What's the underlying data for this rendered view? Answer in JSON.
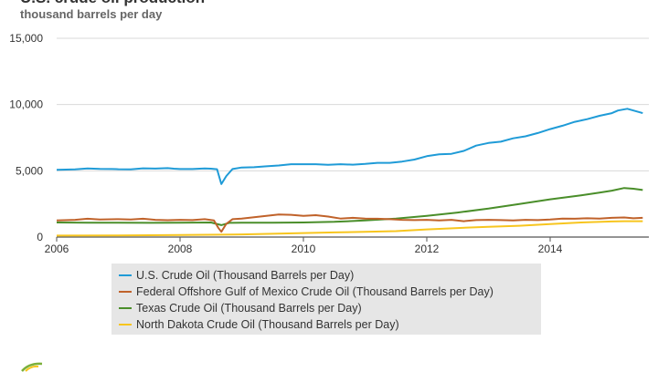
{
  "chart_data": {
    "type": "line",
    "title": "U.S. crude oil production",
    "subtitle": "thousand barrels per day",
    "xlim": [
      2006,
      2015.6
    ],
    "ylim": [
      0,
      15000
    ],
    "x_ticks": [
      2006,
      2008,
      2010,
      2012,
      2014
    ],
    "x_tick_labels": [
      "2006",
      "2008",
      "2010",
      "2012",
      "2014"
    ],
    "y_ticks": [
      0,
      5000,
      10000,
      15000
    ],
    "y_tick_labels": [
      "0",
      "5,000",
      "10,000",
      "15,000"
    ],
    "grid": true,
    "legend_position": "bottom",
    "series": [
      {
        "name": "U.S. Crude Oil (Thousand Barrels per Day)",
        "color": "#1f9bd7",
        "points": [
          [
            2006.0,
            5080
          ],
          [
            2006.3,
            5110
          ],
          [
            2006.5,
            5180
          ],
          [
            2006.7,
            5150
          ],
          [
            2006.9,
            5130
          ],
          [
            2007.0,
            5120
          ],
          [
            2007.2,
            5110
          ],
          [
            2007.4,
            5190
          ],
          [
            2007.6,
            5170
          ],
          [
            2007.8,
            5200
          ],
          [
            2007.9,
            5160
          ],
          [
            2008.0,
            5130
          ],
          [
            2008.2,
            5130
          ],
          [
            2008.4,
            5180
          ],
          [
            2008.5,
            5160
          ],
          [
            2008.6,
            5120
          ],
          [
            2008.67,
            4000
          ],
          [
            2008.75,
            4600
          ],
          [
            2008.85,
            5130
          ],
          [
            2009.0,
            5250
          ],
          [
            2009.2,
            5270
          ],
          [
            2009.4,
            5340
          ],
          [
            2009.6,
            5400
          ],
          [
            2009.8,
            5500
          ],
          [
            2010.0,
            5500
          ],
          [
            2010.2,
            5500
          ],
          [
            2010.4,
            5450
          ],
          [
            2010.6,
            5500
          ],
          [
            2010.8,
            5460
          ],
          [
            2011.0,
            5520
          ],
          [
            2011.2,
            5600
          ],
          [
            2011.4,
            5600
          ],
          [
            2011.6,
            5700
          ],
          [
            2011.8,
            5850
          ],
          [
            2012.0,
            6100
          ],
          [
            2012.2,
            6250
          ],
          [
            2012.4,
            6280
          ],
          [
            2012.6,
            6500
          ],
          [
            2012.8,
            6900
          ],
          [
            2013.0,
            7100
          ],
          [
            2013.2,
            7200
          ],
          [
            2013.4,
            7450
          ],
          [
            2013.6,
            7600
          ],
          [
            2013.8,
            7850
          ],
          [
            2014.0,
            8150
          ],
          [
            2014.2,
            8400
          ],
          [
            2014.4,
            8700
          ],
          [
            2014.6,
            8900
          ],
          [
            2014.8,
            9150
          ],
          [
            2015.0,
            9350
          ],
          [
            2015.1,
            9550
          ],
          [
            2015.25,
            9680
          ],
          [
            2015.35,
            9550
          ],
          [
            2015.5,
            9350
          ]
        ]
      },
      {
        "name": "Federal Offshore Gulf of Mexico Crude Oil (Thousand Barrels per Day)",
        "color": "#c0622a",
        "points": [
          [
            2006.0,
            1250
          ],
          [
            2006.3,
            1300
          ],
          [
            2006.5,
            1380
          ],
          [
            2006.7,
            1330
          ],
          [
            2007.0,
            1350
          ],
          [
            2007.2,
            1320
          ],
          [
            2007.4,
            1380
          ],
          [
            2007.6,
            1300
          ],
          [
            2007.8,
            1270
          ],
          [
            2008.0,
            1300
          ],
          [
            2008.2,
            1280
          ],
          [
            2008.4,
            1350
          ],
          [
            2008.55,
            1250
          ],
          [
            2008.62,
            700
          ],
          [
            2008.67,
            400
          ],
          [
            2008.75,
            1000
          ],
          [
            2008.85,
            1350
          ],
          [
            2009.0,
            1400
          ],
          [
            2009.2,
            1500
          ],
          [
            2009.4,
            1600
          ],
          [
            2009.6,
            1700
          ],
          [
            2009.8,
            1680
          ],
          [
            2010.0,
            1600
          ],
          [
            2010.2,
            1650
          ],
          [
            2010.4,
            1550
          ],
          [
            2010.6,
            1400
          ],
          [
            2010.8,
            1450
          ],
          [
            2011.0,
            1400
          ],
          [
            2011.2,
            1380
          ],
          [
            2011.4,
            1350
          ],
          [
            2011.6,
            1300
          ],
          [
            2011.8,
            1280
          ],
          [
            2012.0,
            1300
          ],
          [
            2012.2,
            1250
          ],
          [
            2012.4,
            1300
          ],
          [
            2012.6,
            1200
          ],
          [
            2012.8,
            1280
          ],
          [
            2013.0,
            1300
          ],
          [
            2013.2,
            1280
          ],
          [
            2013.4,
            1250
          ],
          [
            2013.6,
            1300
          ],
          [
            2013.8,
            1280
          ],
          [
            2014.0,
            1320
          ],
          [
            2014.2,
            1400
          ],
          [
            2014.4,
            1380
          ],
          [
            2014.6,
            1420
          ],
          [
            2014.8,
            1400
          ],
          [
            2015.0,
            1450
          ],
          [
            2015.2,
            1480
          ],
          [
            2015.35,
            1420
          ],
          [
            2015.5,
            1450
          ]
        ]
      },
      {
        "name": "Texas Crude Oil (Thousand Barrels per Day)",
        "color": "#4a8e2a",
        "points": [
          [
            2006.0,
            1100
          ],
          [
            2006.5,
            1080
          ],
          [
            2007.0,
            1080
          ],
          [
            2007.5,
            1070
          ],
          [
            2008.0,
            1080
          ],
          [
            2008.5,
            1100
          ],
          [
            2008.67,
            900
          ],
          [
            2008.8,
            1070
          ],
          [
            2009.0,
            1080
          ],
          [
            2009.5,
            1080
          ],
          [
            2010.0,
            1100
          ],
          [
            2010.5,
            1150
          ],
          [
            2011.0,
            1250
          ],
          [
            2011.5,
            1400
          ],
          [
            2012.0,
            1600
          ],
          [
            2012.5,
            1850
          ],
          [
            2013.0,
            2150
          ],
          [
            2013.5,
            2500
          ],
          [
            2014.0,
            2850
          ],
          [
            2014.5,
            3150
          ],
          [
            2014.8,
            3350
          ],
          [
            2015.0,
            3500
          ],
          [
            2015.2,
            3700
          ],
          [
            2015.35,
            3650
          ],
          [
            2015.5,
            3550
          ]
        ]
      },
      {
        "name": "North Dakota Crude Oil (Thousand Barrels per Day)",
        "color": "#f7c51e",
        "points": [
          [
            2006.0,
            110
          ],
          [
            2007.0,
            120
          ],
          [
            2008.0,
            150
          ],
          [
            2009.0,
            200
          ],
          [
            2009.5,
            250
          ],
          [
            2010.0,
            300
          ],
          [
            2010.5,
            350
          ],
          [
            2011.0,
            400
          ],
          [
            2011.5,
            450
          ],
          [
            2012.0,
            580
          ],
          [
            2012.5,
            680
          ],
          [
            2013.0,
            780
          ],
          [
            2013.5,
            850
          ],
          [
            2014.0,
            980
          ],
          [
            2014.5,
            1100
          ],
          [
            2015.0,
            1180
          ],
          [
            2015.2,
            1200
          ],
          [
            2015.5,
            1200
          ]
        ]
      }
    ]
  }
}
